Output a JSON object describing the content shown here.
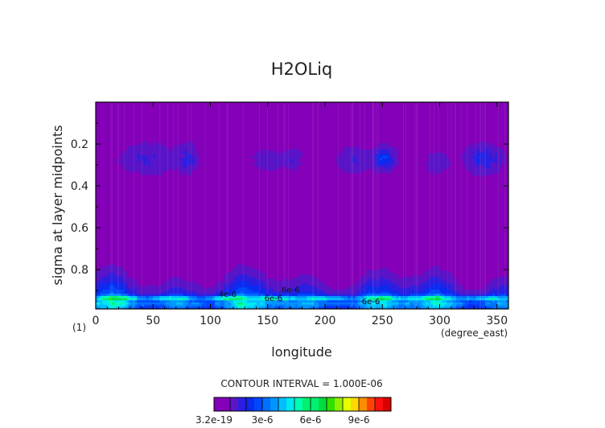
{
  "colors": {
    "background": "#ffffff",
    "frame": "#000000",
    "text": "#222222",
    "level_colors": [
      "#8400b8",
      "#5a14c8",
      "#2c1ee0",
      "#0a2af0",
      "#0048ff",
      "#0070ff",
      "#0096ff",
      "#00c0ff",
      "#00e8f0",
      "#00ffb0",
      "#00f070",
      "#00dd3c",
      "#30e000",
      "#90f000",
      "#e8ff00",
      "#ffd800",
      "#ff8c00",
      "#ff4400",
      "#ff1010",
      "#d80000"
    ]
  },
  "chart_data": {
    "type": "contour",
    "title": "H2OLiq",
    "xlabel": "longitude",
    "ylabel": "sigma at layer midpoints",
    "x_units": "(degree_east)",
    "panel_tag": "(1)",
    "xlim": [
      0,
      360
    ],
    "ylim": [
      0.988,
      0.0
    ],
    "x_ticks": [
      0,
      50,
      100,
      150,
      200,
      250,
      300,
      350
    ],
    "x_tick_labels": [
      "0",
      "50",
      "100",
      "150",
      "200",
      "250",
      "300",
      "350"
    ],
    "y_ticks": [
      0.2,
      0.4,
      0.6,
      0.8
    ],
    "y_tick_labels": [
      "0.2",
      "0.4",
      "0.6",
      "0.8"
    ],
    "contour_interval_text": "CONTOUR INTERVAL = 1.000E-06",
    "contour_interval": 1e-06,
    "colorbar": {
      "tick_labels": [
        "3.2e-19",
        "3e-6",
        "6e-6",
        "9e-6"
      ],
      "levels": 11
    },
    "inline_labels": [
      "4e-6",
      "6e-6",
      "6e-6",
      "6e-6"
    ],
    "cloud_cells": [
      {
        "lon": 45,
        "sigma": 0.27,
        "amp": 1.0,
        "dlon": 22,
        "dsig": 0.07
      },
      {
        "lon": 80,
        "sigma": 0.27,
        "amp": 1.6,
        "dlon": 8,
        "dsig": 0.06
      },
      {
        "lon": 150,
        "sigma": 0.28,
        "amp": 0.6,
        "dlon": 14,
        "dsig": 0.05
      },
      {
        "lon": 172,
        "sigma": 0.27,
        "amp": 0.8,
        "dlon": 7,
        "dsig": 0.05
      },
      {
        "lon": 226,
        "sigma": 0.28,
        "amp": 0.9,
        "dlon": 14,
        "dsig": 0.06
      },
      {
        "lon": 252,
        "sigma": 0.27,
        "amp": 2.6,
        "dlon": 9,
        "dsig": 0.05
      },
      {
        "lon": 298,
        "sigma": 0.29,
        "amp": 0.8,
        "dlon": 10,
        "dsig": 0.05
      },
      {
        "lon": 338,
        "sigma": 0.27,
        "amp": 2.0,
        "dlon": 14,
        "dsig": 0.06
      }
    ]
  }
}
